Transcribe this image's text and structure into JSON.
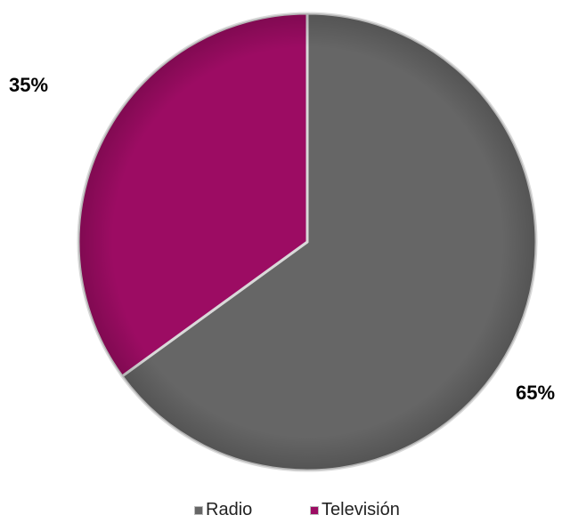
{
  "chart_data": {
    "type": "pie",
    "categories": [
      "Radio",
      "Televisión"
    ],
    "values": [
      65,
      35
    ],
    "labels": [
      "65%",
      "35%"
    ],
    "colors": [
      "#666666",
      "#9c0c63"
    ],
    "legend_position": "bottom"
  }
}
